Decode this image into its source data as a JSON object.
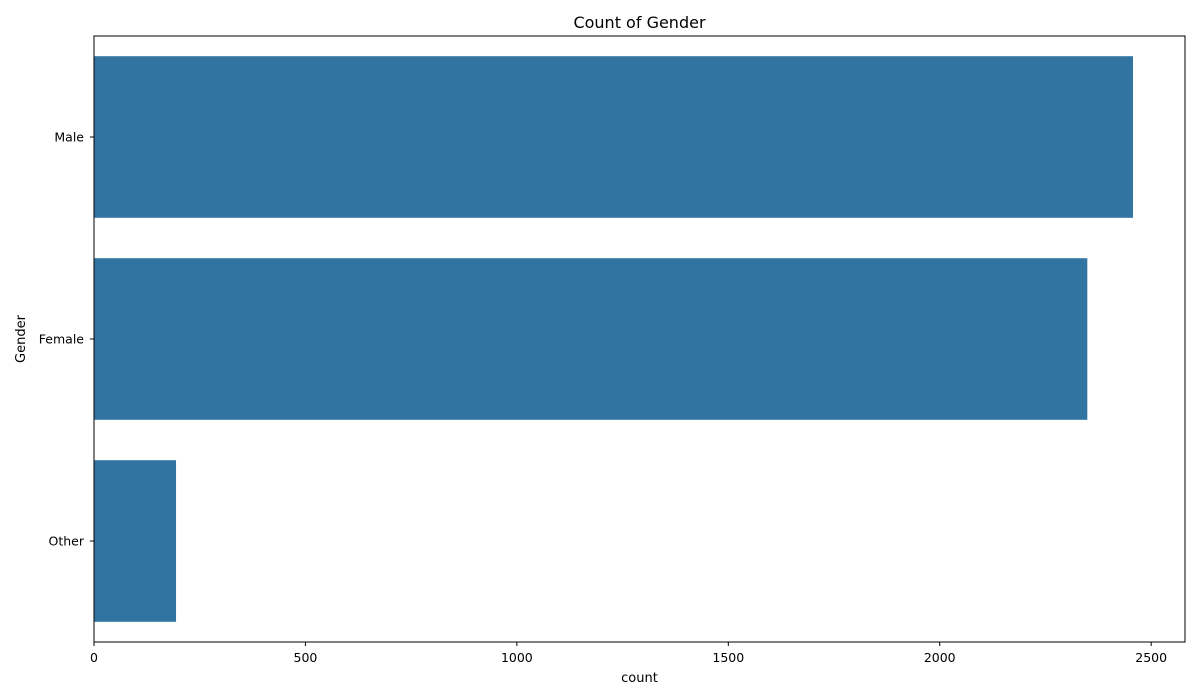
{
  "chart_data": {
    "type": "bar",
    "orientation": "horizontal",
    "title": "Count of Gender",
    "xlabel": "count",
    "ylabel": "Gender",
    "categories": [
      "Male",
      "Female",
      "Other"
    ],
    "values": [
      2457,
      2349,
      194
    ],
    "xlim": [
      0,
      2580
    ],
    "xticks": [
      0,
      500,
      1000,
      1500,
      2000,
      2500
    ],
    "grid": false,
    "legend": "none",
    "bar_color": "#3274a1"
  }
}
